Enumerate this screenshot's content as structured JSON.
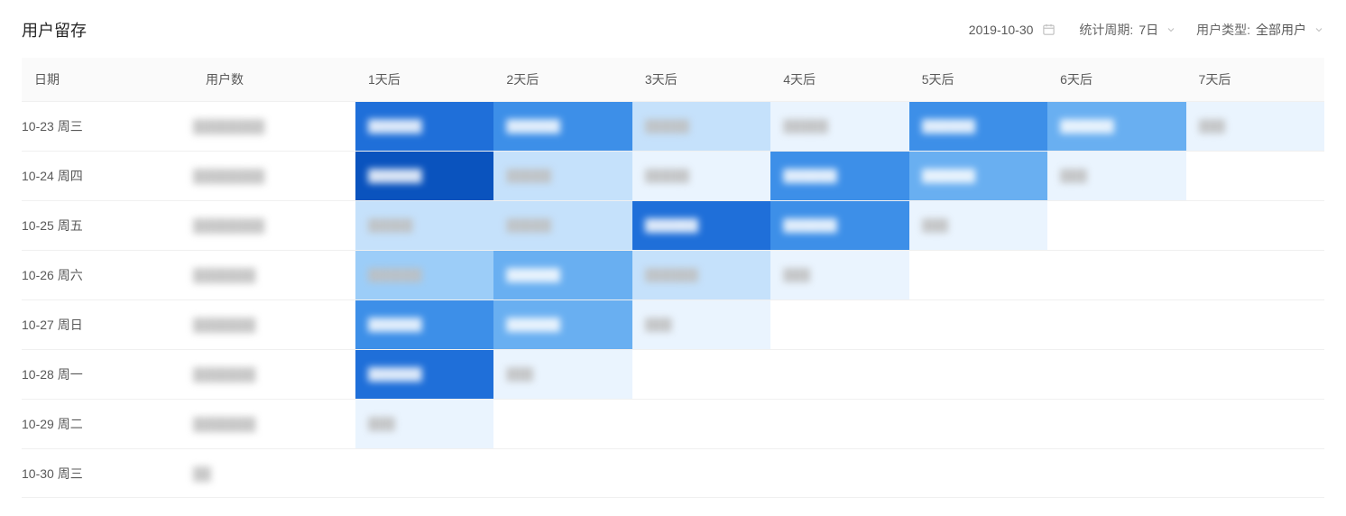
{
  "header": {
    "title": "用户留存",
    "date_value": "2019-10-30",
    "period_label": "统计周期:",
    "period_value": "7日",
    "user_type_label": "用户类型:",
    "user_type_value": "全部用户"
  },
  "table": {
    "columns": [
      "日期",
      "用户数",
      "1天后",
      "2天后",
      "3天后",
      "4天后",
      "5天后",
      "6天后",
      "7天后"
    ],
    "heatmap_colors": {
      "0": "#eaf4fe",
      "1": "#c5e1fb",
      "2": "#9ccdf8",
      "3": "#69aff1",
      "4": "#3d8fe8",
      "5": "#1f6fd9",
      "6": "#0a53be"
    },
    "text_color_light": "#bfbfbf",
    "text_color_dark": "#ffffff",
    "rows": [
      {
        "date": "10-23 周三",
        "users": "████████",
        "cells": [
          {
            "value": "██████",
            "level": 5
          },
          {
            "value": "██████",
            "level": 4
          },
          {
            "value": "█████",
            "level": 1
          },
          {
            "value": "█████",
            "level": 0
          },
          {
            "value": "██████",
            "level": 4
          },
          {
            "value": "██████",
            "level": 3
          },
          {
            "value": "███",
            "level": 0
          }
        ]
      },
      {
        "date": "10-24 周四",
        "users": "████████",
        "cells": [
          {
            "value": "██████",
            "level": 6
          },
          {
            "value": "█████",
            "level": 1
          },
          {
            "value": "█████",
            "level": 0
          },
          {
            "value": "██████",
            "level": 4
          },
          {
            "value": "██████",
            "level": 3
          },
          {
            "value": "███",
            "level": 0
          },
          null
        ]
      },
      {
        "date": "10-25 周五",
        "users": "████████",
        "cells": [
          {
            "value": "█████",
            "level": 1
          },
          {
            "value": "█████",
            "level": 1
          },
          {
            "value": "██████",
            "level": 5
          },
          {
            "value": "██████",
            "level": 4
          },
          {
            "value": "███",
            "level": 0
          },
          null,
          null
        ]
      },
      {
        "date": "10-26 周六",
        "users": "███████",
        "cells": [
          {
            "value": "██████",
            "level": 2
          },
          {
            "value": "██████",
            "level": 3
          },
          {
            "value": "██████",
            "level": 1
          },
          {
            "value": "███",
            "level": 0
          },
          null,
          null,
          null
        ]
      },
      {
        "date": "10-27 周日",
        "users": "███████",
        "cells": [
          {
            "value": "██████",
            "level": 4
          },
          {
            "value": "██████",
            "level": 3
          },
          {
            "value": "███",
            "level": 0
          },
          null,
          null,
          null,
          null
        ]
      },
      {
        "date": "10-28 周一",
        "users": "███████",
        "cells": [
          {
            "value": "██████",
            "level": 5
          },
          {
            "value": "███",
            "level": 0
          },
          null,
          null,
          null,
          null,
          null
        ]
      },
      {
        "date": "10-29 周二",
        "users": "███████",
        "cells": [
          {
            "value": "███",
            "level": 0
          },
          null,
          null,
          null,
          null,
          null,
          null
        ]
      },
      {
        "date": "10-30 周三",
        "users": "██",
        "cells": [
          null,
          null,
          null,
          null,
          null,
          null,
          null
        ]
      }
    ]
  }
}
